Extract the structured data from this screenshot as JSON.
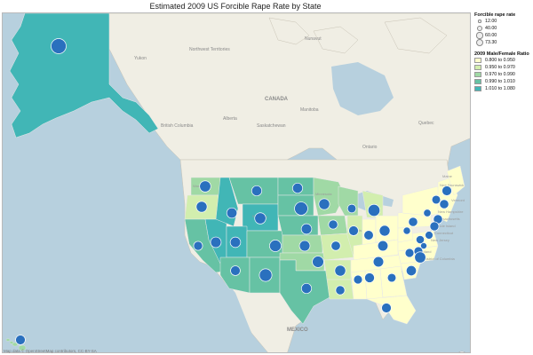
{
  "title": "Estimated 2009 US Forcible Rape Rate by State",
  "legend": {
    "size_title": "Forcible rape rate",
    "size_items": [
      {
        "label": "12.00",
        "value": 12
      },
      {
        "label": "40.00",
        "value": 40
      },
      {
        "label": "60.00",
        "value": 60
      },
      {
        "label": "73.30",
        "value": 73.3
      }
    ],
    "color_title": "2009 Male/Female Ratio",
    "color_items": [
      {
        "label": "0.800 to 0.950",
        "color": "#ffffcc"
      },
      {
        "label": "0.950 to 0.970",
        "color": "#d2eeae"
      },
      {
        "label": "0.970 to 0.990",
        "color": "#a0d9a5"
      },
      {
        "label": "0.990 to 1.010",
        "color": "#66c2a4"
      },
      {
        "label": "1.010 to 1.080",
        "color": "#41b6b6"
      }
    ]
  },
  "map_labels": {
    "yukon": "Yukon",
    "nwt": "Northwest Territories",
    "nunavut": "Nunavut",
    "bc": "British Columbia",
    "alberta": "Alberta",
    "saskatchewan": "Saskatchewan",
    "manitoba": "Manitoba",
    "ontario": "Ontario",
    "quebec": "Quebec",
    "canada": "CANADA",
    "mexico": "MEXICO",
    "new_brunswick": "New Brunswick",
    "vermont": "Vermont",
    "new_hampshire": "New Hampshire",
    "massachusetts": "Massachusetts",
    "rhode_island": "Rhode Island",
    "connecticut": "Connecticut",
    "new_jersey": "New Jersey",
    "maryland": "Maryland",
    "dc": "District of Columbia",
    "maine": "Maine",
    "illinois": "Illinois",
    "wyoming": "Wyoming",
    "minnesota": "Minnesota",
    "washington": "Washington"
  },
  "attribution": "Map data © OpenStreetMap contributors, CC-BY-SA",
  "colors": {
    "water": "#b7d0de",
    "land": "#f0eee4",
    "bubble": "#2a70be"
  },
  "bubble_rates": {
    "AK": 73.3,
    "WA": 40,
    "OR": 38,
    "CA": 26,
    "NV": 36,
    "ID": 34,
    "MT": 33,
    "WY": 40,
    "UT": 35,
    "CO": 44,
    "AZ": 30,
    "NM": 51,
    "ND": 33,
    "SD": 56,
    "NE": 35,
    "KS": 36,
    "OK": 42,
    "TX": 33,
    "MN": 38,
    "IA": 27,
    "MO": 28,
    "AR": 38,
    "LA": 27,
    "WI": 24,
    "IL": 30,
    "MI": 46,
    "IN": 29,
    "OH": 37,
    "KY": 34,
    "TN": 35,
    "MS": 25,
    "AL": 31,
    "GA": 24,
    "FL": 30,
    "SC": 33,
    "NC": 25,
    "VA": 22,
    "WV": 17,
    "PA": 27,
    "NY": 18,
    "VT": 24,
    "NH": 27,
    "MA": 27,
    "RI": 26,
    "CT": 20,
    "NJ": 13,
    "DE": 40,
    "MD": 25,
    "ME": 30,
    "HI": 30
  }
}
